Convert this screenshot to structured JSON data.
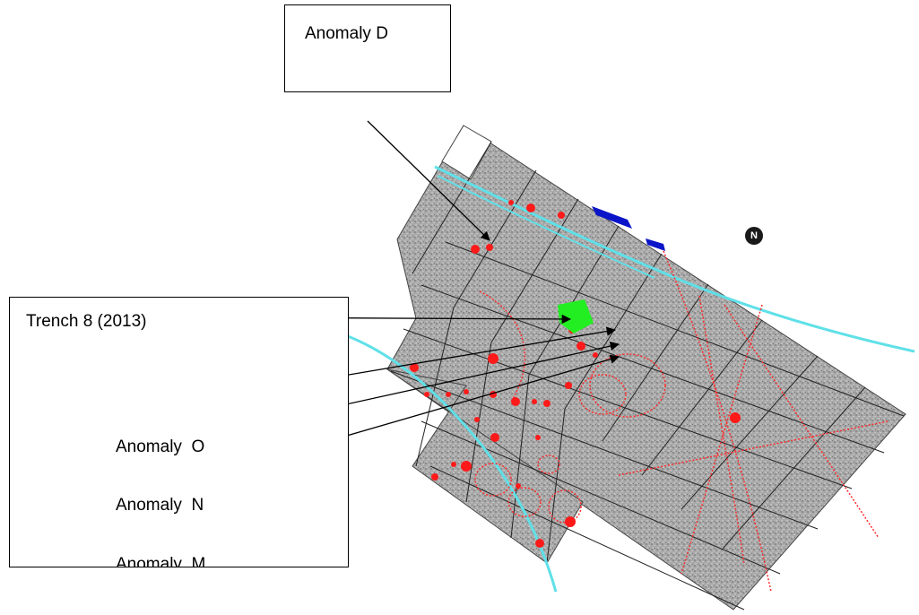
{
  "labels": {
    "anomaly_d": "Anomaly D",
    "trench_8": "Trench 8 (2013)",
    "anomaly_o": "Anomaly  O",
    "anomaly_n": "Anomaly  N",
    "anomaly_m_partial": "Anomaly  M"
  },
  "north_arrow": {
    "icon": "north-arrow-icon",
    "letter": "N"
  },
  "colors": {
    "survey_grey": "#a9a9a9",
    "grid_line": "#222222",
    "anomaly_red": "#ff1a1a",
    "trench_green": "#22ee22",
    "feature_blue": "#0a14c8",
    "channel_cyan": "#5fe0e8"
  }
}
